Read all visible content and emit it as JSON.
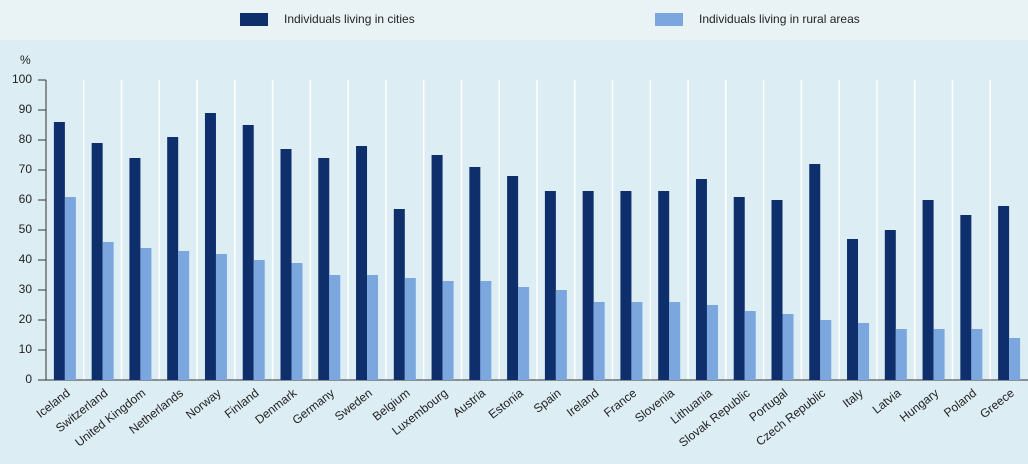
{
  "chart_data": {
    "type": "bar",
    "y_label": "%",
    "categories": [
      "Iceland",
      "Switzerland",
      "United Kingdom",
      "Netherlands",
      "Norway",
      "Finland",
      "Denmark",
      "Germany",
      "Sweden",
      "Belgium",
      "Luxembourg",
      "Austria",
      "Estonia",
      "Spain",
      "Ireland",
      "France",
      "Slovenia",
      "Lithuania",
      "Slovak Republic",
      "Portugal",
      "Czech Republic",
      "Italy",
      "Latvia",
      "Hungary",
      "Poland",
      "Greece"
    ],
    "series": [
      {
        "name": "Individuals living in cities",
        "color": "#0e2f6b",
        "values": [
          86,
          79,
          74,
          81,
          89,
          85,
          77,
          74,
          78,
          57,
          75,
          71,
          68,
          63,
          63,
          63,
          63,
          67,
          61,
          60,
          72,
          47,
          50,
          60,
          55,
          58
        ]
      },
      {
        "name": "Individuals living in rural areas",
        "color": "#7ba7de",
        "values": [
          61,
          46,
          44,
          43,
          42,
          40,
          39,
          35,
          35,
          34,
          33,
          33,
          31,
          30,
          26,
          26,
          26,
          25,
          23,
          22,
          20,
          19,
          17,
          17,
          17,
          14
        ]
      }
    ],
    "ylim": [
      0,
      100
    ],
    "yticks": [
      0,
      10,
      20,
      30,
      40,
      50,
      60,
      70,
      80,
      90,
      100
    ]
  }
}
